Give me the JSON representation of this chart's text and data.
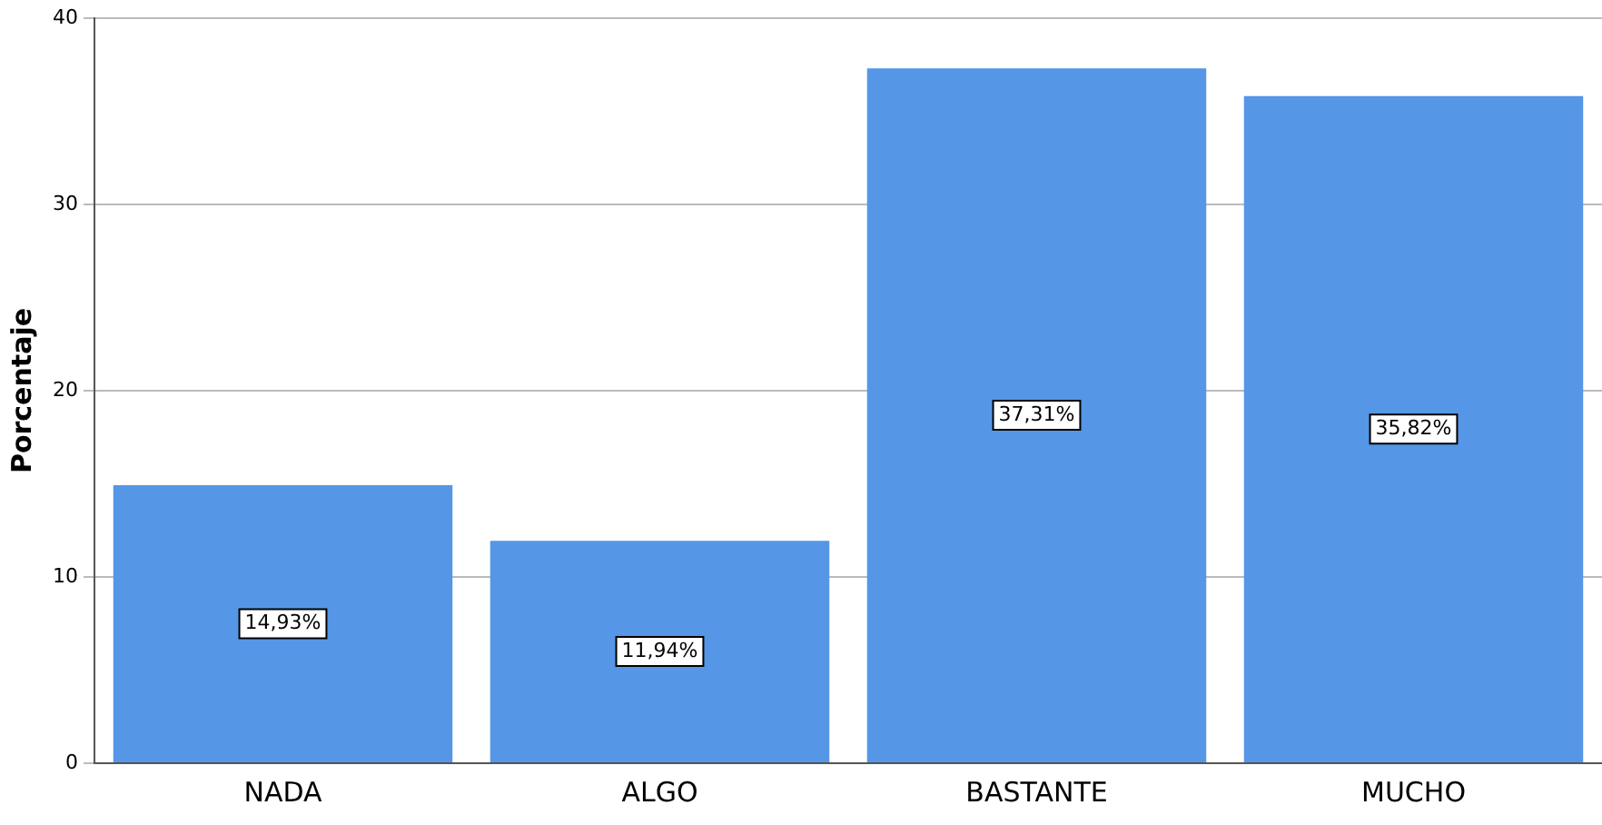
{
  "chart_data": {
    "type": "bar",
    "ylabel": "Porcentaje",
    "categories": [
      "NADA",
      "ALGO",
      "BASTANTE",
      "MUCHO"
    ],
    "values": [
      14.93,
      11.94,
      37.31,
      35.82
    ],
    "value_labels": [
      "14,93%",
      "11,94%",
      "37,31%",
      "35,82%"
    ],
    "color": "#5596e6",
    "ylim": [
      0,
      40
    ],
    "yticks": [
      0,
      10,
      20,
      30,
      40
    ],
    "grid": "y"
  }
}
